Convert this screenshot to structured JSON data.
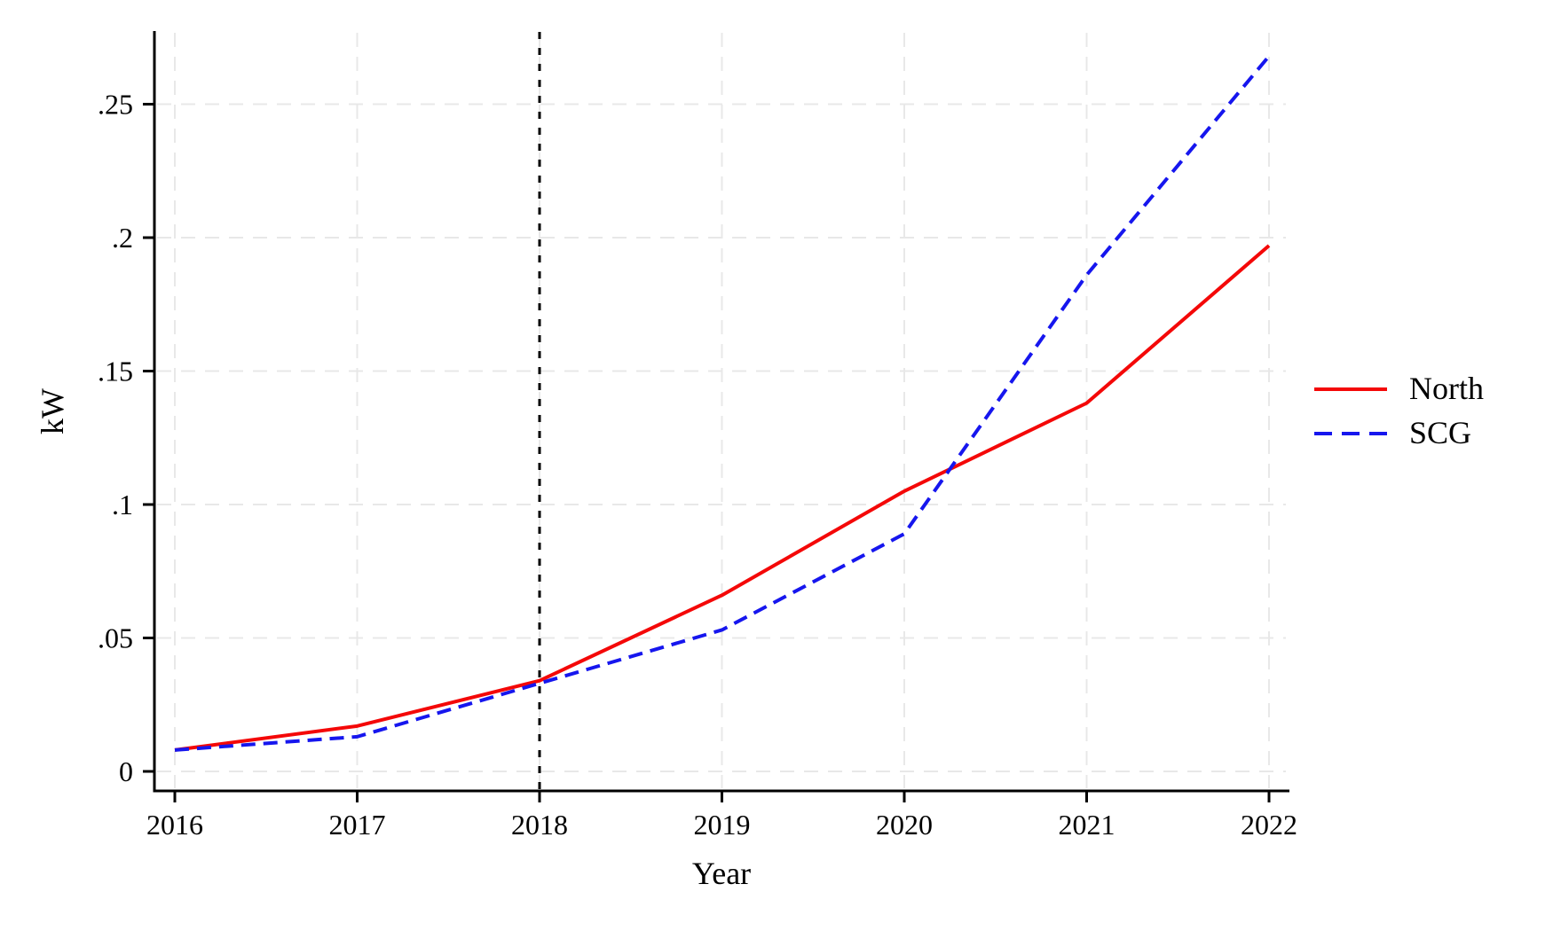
{
  "figure": {
    "background": "#ffffff"
  },
  "chart_data": {
    "type": "line",
    "xlabel": "Year",
    "ylabel": "kW",
    "x": [
      2016,
      2017,
      2018,
      2019,
      2020,
      2021,
      2022
    ],
    "x_tick_labels": [
      "2016",
      "2017",
      "2018",
      "2019",
      "2020",
      "2021",
      "2022"
    ],
    "y_ticks": [
      0,
      0.05,
      0.1,
      0.15,
      0.2,
      0.25
    ],
    "y_tick_labels": [
      "0",
      ".05",
      ".1",
      ".15",
      ".2",
      ".25"
    ],
    "ylim": [
      -0.007,
      0.278
    ],
    "grid": true,
    "legend_position": "right-outside",
    "series": [
      {
        "name": "North",
        "line_style": "solid",
        "color": "#f40808",
        "values": [
          0.008,
          0.017,
          0.034,
          0.066,
          0.105,
          0.138,
          0.197
        ]
      },
      {
        "name": "SCG",
        "line_style": "dashed",
        "color": "#1616ee",
        "values": [
          0.008,
          0.013,
          0.033,
          0.053,
          0.089,
          0.186,
          0.268
        ]
      }
    ],
    "reference_line": {
      "x": 2018,
      "orientation": "vertical",
      "line_style": "dotted",
      "color": "#000000"
    }
  },
  "legend": {
    "items": [
      {
        "label": "North",
        "color": "#f40808",
        "line_style": "solid"
      },
      {
        "label": "SCG",
        "color": "#1616ee",
        "line_style": "dashed"
      }
    ]
  },
  "colors": {
    "axis": "#000000",
    "grid": "#e8e8e8",
    "text": "#000000"
  }
}
